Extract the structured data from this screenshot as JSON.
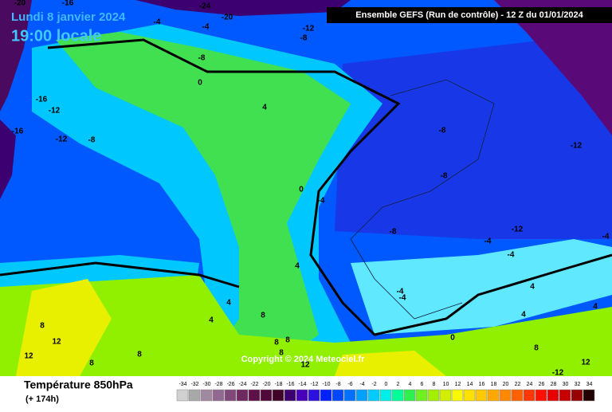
{
  "header": {
    "date": "Lundi 8 janvier 2024",
    "time": "19:00 locale",
    "model": "Ensemble GEFS  (Run de contrôle)  -  12 Z du 01/01/2024"
  },
  "map": {
    "contour_labels": [
      "-20",
      "-16",
      "-24",
      "-20",
      "-4",
      "-4",
      "-12",
      "-8",
      "-8",
      "0",
      "-16",
      "-12",
      "-16",
      "-12",
      "-8",
      "4",
      "-8",
      "-12",
      "-8",
      "0",
      "-4",
      "-12",
      "-8",
      "-4",
      "-4",
      "-4",
      "4",
      "-4",
      "-4",
      "4",
      "4",
      "8",
      "8",
      "12",
      "12",
      "8",
      "8",
      "8",
      "8",
      "8",
      "0",
      "4",
      "4",
      "4",
      "8",
      "12",
      "-12",
      "12"
    ],
    "copyright": "Copyright © 2024 Meteociel.fr"
  },
  "legend": {
    "title": "Température 850hPa",
    "subtitle": "(+ 174h)",
    "scale": [
      -34,
      -32,
      -30,
      -28,
      -26,
      -24,
      -22,
      -20,
      -18,
      -16,
      -14,
      -12,
      -10,
      -8,
      -6,
      -4,
      -2,
      0,
      2,
      4,
      6,
      8,
      10,
      12,
      14,
      16,
      18,
      20,
      22,
      24,
      26,
      28,
      30,
      32,
      34
    ],
    "colors": [
      "#d0d0d0",
      "#a8a8a8",
      "#a088a0",
      "#906890",
      "#804878",
      "#702860",
      "#601048",
      "#500838",
      "#400428",
      "#3c0070",
      "#4800b8",
      "#2c10e0",
      "#0020ff",
      "#0048ff",
      "#0070ff",
      "#00a0ff",
      "#00ccff",
      "#00f0e8",
      "#00ff98",
      "#30f050",
      "#70f020",
      "#a0f000",
      "#d0f000",
      "#f8f800",
      "#ffe000",
      "#ffc800",
      "#ffa800",
      "#ff8800",
      "#ff6000",
      "#ff3800",
      "#ff1000",
      "#e80000",
      "#c80000",
      "#980000",
      "#200000"
    ]
  }
}
